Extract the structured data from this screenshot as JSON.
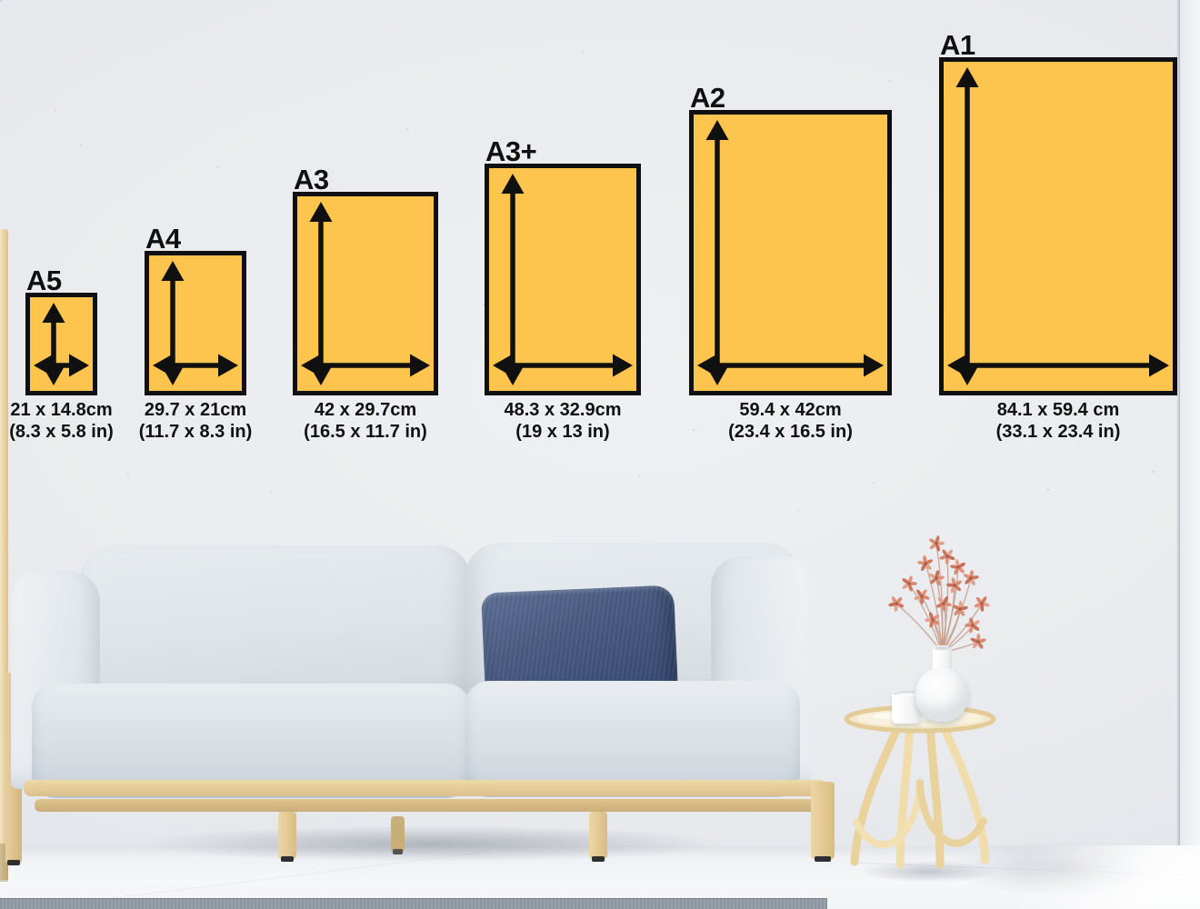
{
  "size_chart": {
    "sizes": [
      {
        "label": "A5",
        "dimensions_cm": "21 x 14.8cm",
        "dimensions_in": "(8.3 x 5.8 in)"
      },
      {
        "label": "A4",
        "dimensions_cm": "29.7 x 21cm",
        "dimensions_in": "(11.7 x 8.3 in)"
      },
      {
        "label": "A3",
        "dimensions_cm": "42 x 29.7cm",
        "dimensions_in": "(16.5 x 11.7 in)"
      },
      {
        "label": "A3+",
        "dimensions_cm": "48.3 x 32.9cm",
        "dimensions_in": "(19 x 13 in)"
      },
      {
        "label": "A2",
        "dimensions_cm": "59.4 x 42cm",
        "dimensions_in": "(23.4 x 16.5 in)"
      },
      {
        "label": "A1",
        "dimensions_cm": "84.1 x 59.4 cm",
        "dimensions_in": "(33.1 x 23.4 in)"
      }
    ]
  },
  "colors": {
    "paper_fill": "#fdc54d",
    "outline": "#101010",
    "wall": "#e9ebee",
    "floor": "#f4f5f7",
    "sofa_fabric": "#dbe1e7",
    "pillow_navy": "#42567d",
    "wood_frame": "#e6cd9b",
    "rattan": "#efdcab",
    "rug_gray": "#8d959e",
    "flower_coral": "#d88a71",
    "vase_white": "#fbfbfc"
  }
}
